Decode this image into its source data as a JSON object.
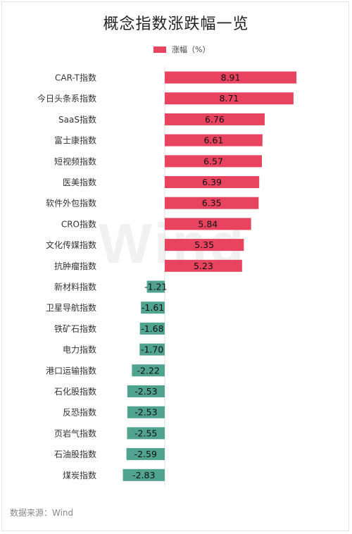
{
  "chart_data": {
    "type": "bar",
    "orientation": "horizontal",
    "title": "概念指数涨跌幅一览",
    "series": [
      {
        "name": "涨幅（%）",
        "color_positive": "#e8435f",
        "color_negative": "#4fa38f"
      }
    ],
    "categories": [
      "CAR-T指数",
      "今日头条系指数",
      "SaaS指数",
      "富士康指数",
      "短视频指数",
      "医美指数",
      "软件外包指数",
      "CRO指数",
      "文化传媒指数",
      "抗肿瘤指数",
      "新材料指数",
      "卫星导航指数",
      "铁矿石指数",
      "电力指数",
      "港口运输指数",
      "石化股指数",
      "反恐指数",
      "页岩气指数",
      "石油股指数",
      "煤炭指数"
    ],
    "values": [
      8.91,
      8.71,
      6.76,
      6.61,
      6.57,
      6.39,
      6.35,
      5.84,
      5.35,
      5.23,
      -1.21,
      -1.61,
      -1.68,
      -1.7,
      -2.22,
      -2.53,
      -2.53,
      -2.55,
      -2.59,
      -2.83
    ],
    "value_labels": [
      "8.91",
      "8.71",
      "6.76",
      "6.61",
      "6.57",
      "6.39",
      "6.35",
      "5.84",
      "5.35",
      "5.23",
      "-1.21",
      "-1.61",
      "-1.68",
      "-1.70",
      "-2.22",
      "-2.53",
      "-2.53",
      "-2.55",
      "-2.59",
      "-2.83"
    ],
    "legend_position": "top",
    "grid": false
  },
  "source": "数据来源：Wind",
  "watermark": "Wind"
}
